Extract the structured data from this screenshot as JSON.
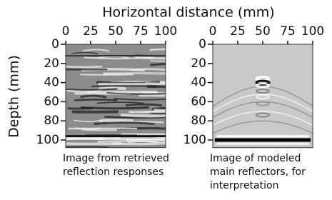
{
  "xlabel": "Horizontal distance (mm)",
  "ylabel": "Depth (mm)",
  "chart_data": [
    {
      "type": "image",
      "xlim": [
        0,
        100
      ],
      "xticks": [
        0,
        25,
        50,
        75,
        100
      ],
      "ylim": [
        0,
        108
      ],
      "yticks": [
        0,
        20,
        40,
        60,
        80,
        100
      ],
      "caption": [
        "Image from retrieved",
        "reflection responses"
      ]
    },
    {
      "type": "image",
      "xlim": [
        0,
        100
      ],
      "xticks": [
        0,
        25,
        50,
        75,
        100
      ],
      "ylim": [
        0,
        108
      ],
      "yticks": [
        0,
        20,
        40,
        60,
        80,
        100
      ],
      "caption": [
        "Image of modeled",
        "main reflectors, for",
        "interpretation"
      ]
    }
  ]
}
